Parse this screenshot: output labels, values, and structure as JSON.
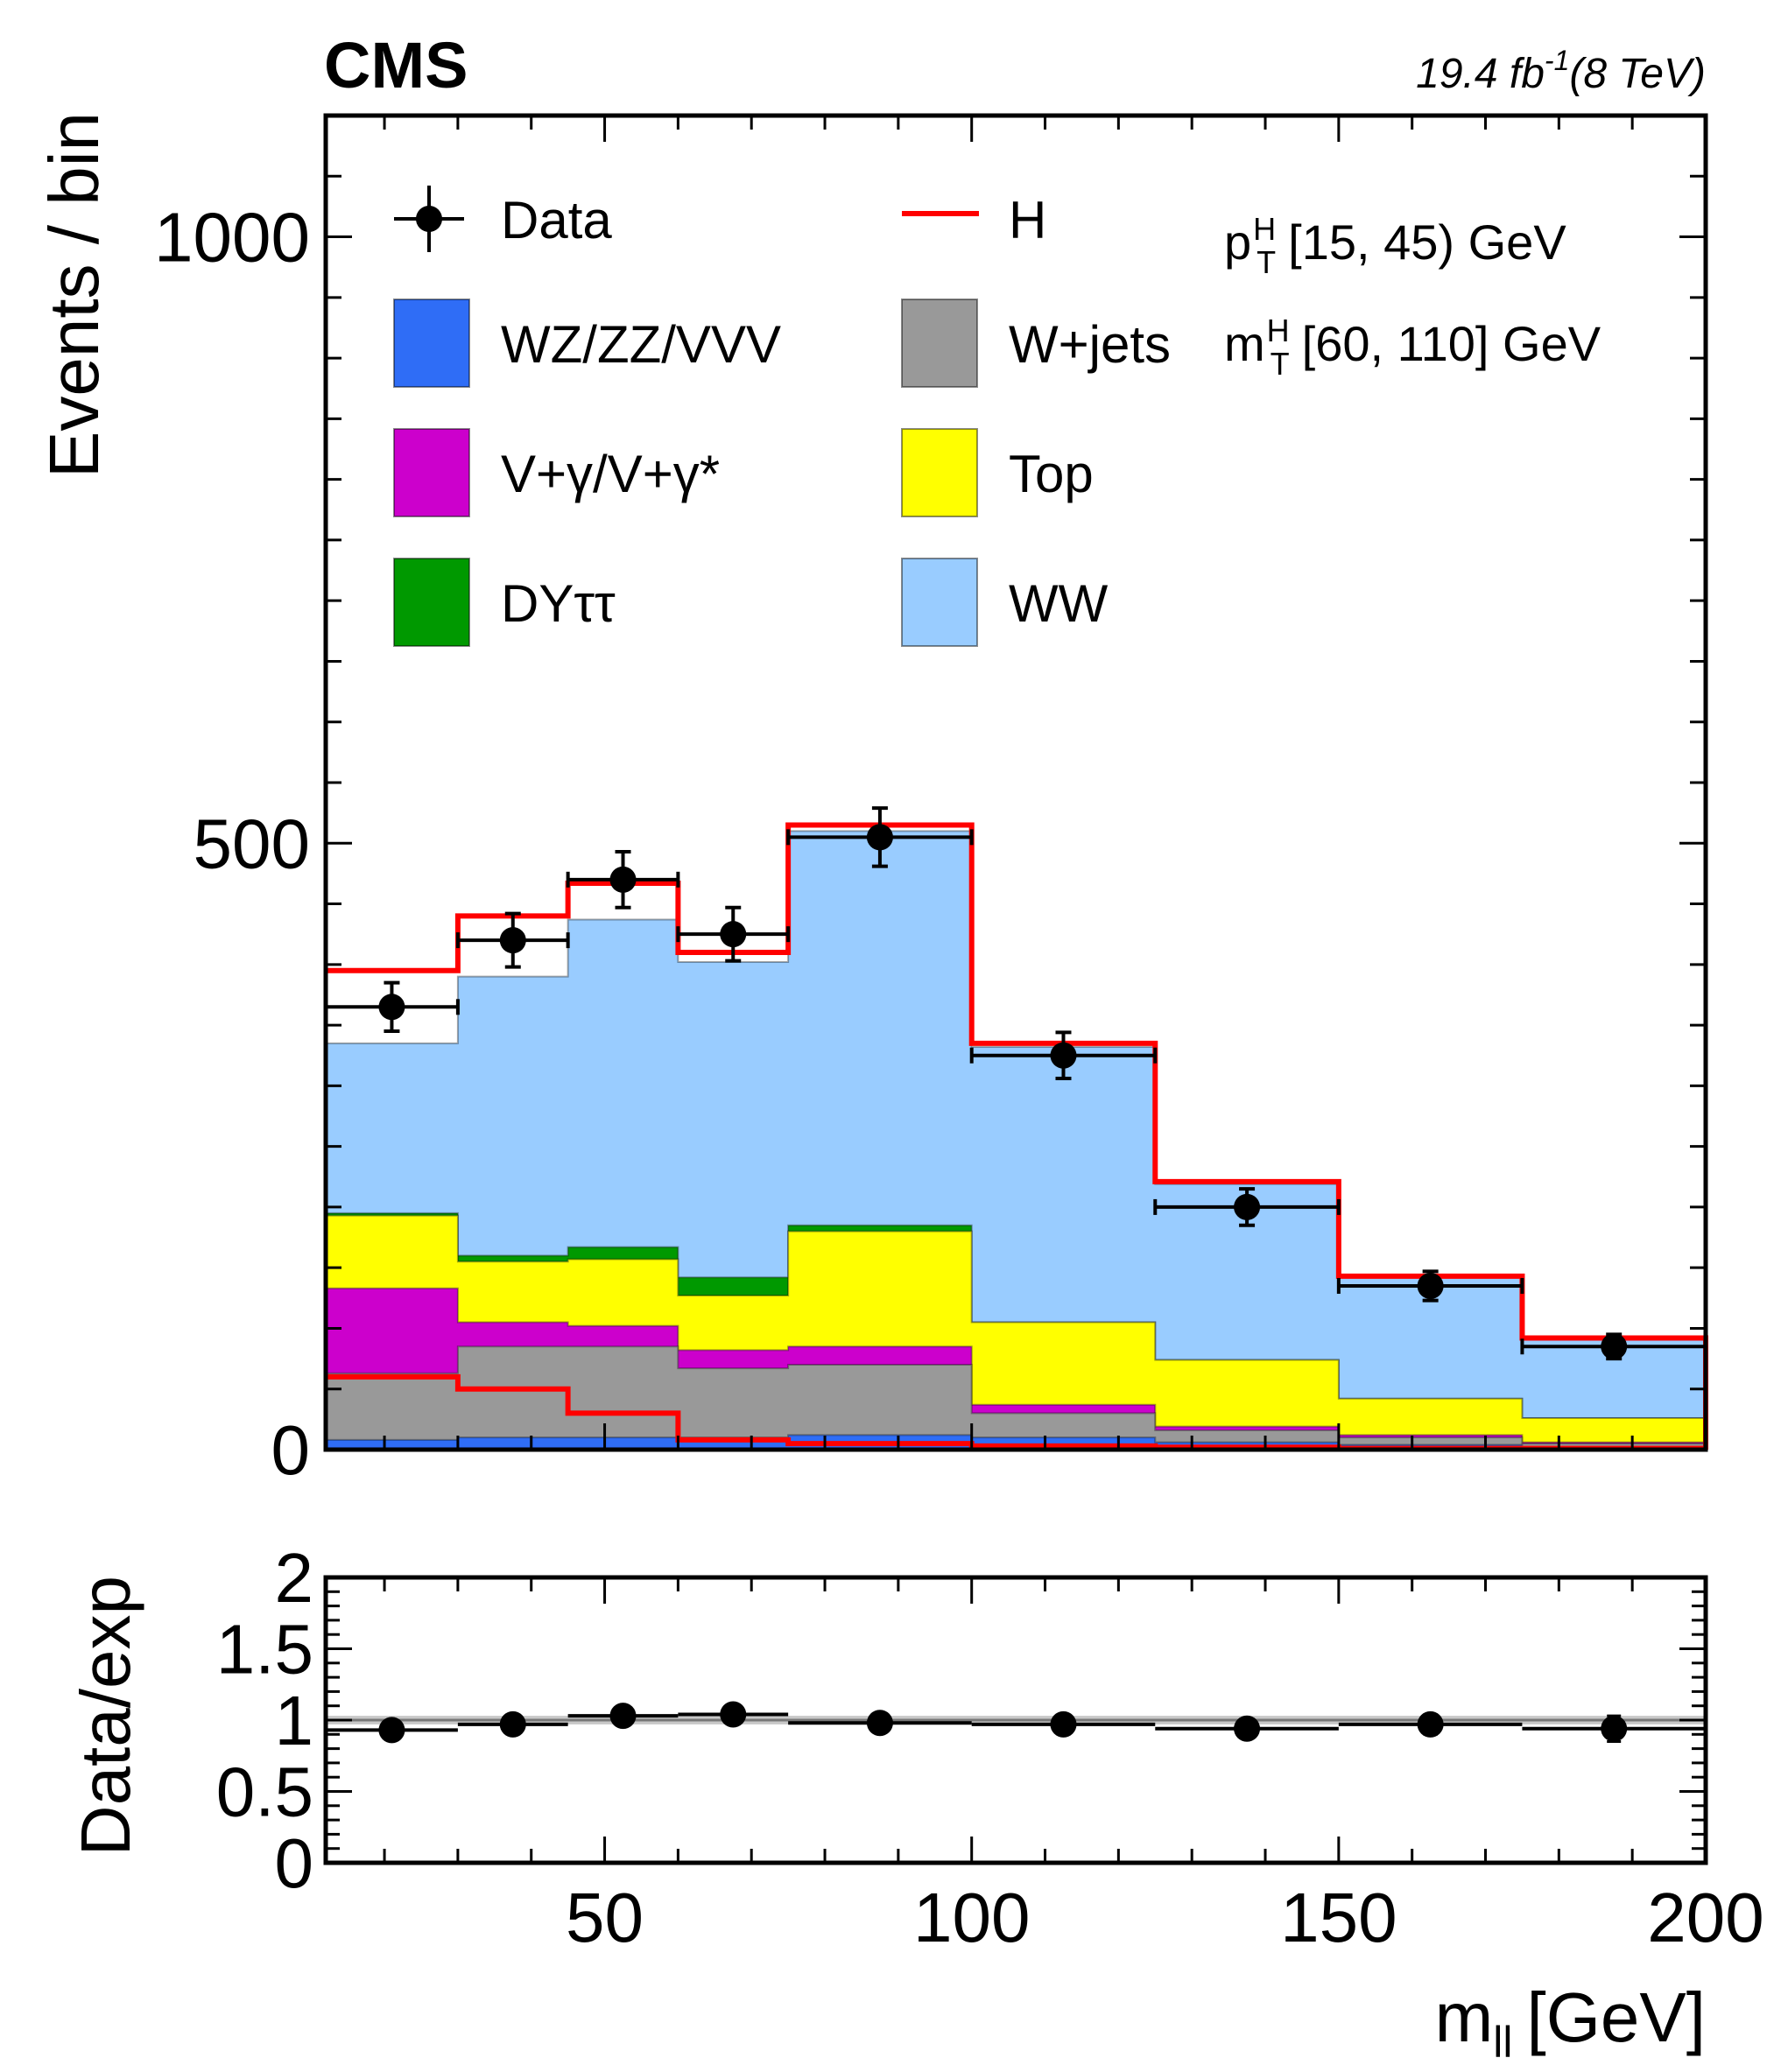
{
  "chart_data": [
    {
      "type": "bar",
      "stacked": true,
      "experiment": "CMS",
      "luminosity": "19.4 fb-1(8 TeV)",
      "ylabel": "Events / bin",
      "ylim": [
        0,
        1100
      ],
      "xlim": [
        12,
        200
      ],
      "yticks": [
        0,
        500,
        1000
      ],
      "bin_edges": [
        12,
        30,
        45,
        60,
        75,
        100,
        125,
        150,
        175,
        200
      ],
      "annotations": {
        "pt_line": "p^H_T [15, 45) GeV",
        "mt_line": "m^H_T [60, 110] GeV"
      },
      "legend": {
        "placement": "top-left",
        "entries": [
          {
            "label": "Data",
            "style": "marker"
          },
          {
            "label": "H",
            "style": "line"
          },
          {
            "label": "WZ/ZZ/VVV",
            "style": "fill"
          },
          {
            "label": "W+jets",
            "style": "fill"
          },
          {
            "label": "V+γ/V+γ*",
            "style": "fill"
          },
          {
            "label": "Top",
            "style": "fill"
          },
          {
            "label": "DYττ",
            "style": "fill"
          },
          {
            "label": "WW",
            "style": "fill"
          }
        ]
      },
      "series": [
        {
          "name": "WZ/ZZ/VVV",
          "color": "#2f6df6",
          "values": [
            8,
            10,
            10,
            10,
            12,
            10,
            6,
            4,
            2
          ]
        },
        {
          "name": "W+jets",
          "color": "#999999",
          "values": [
            55,
            75,
            75,
            57,
            58,
            20,
            10,
            6,
            3
          ]
        },
        {
          "name": "V+γ/V+γ*",
          "color": "#cc00cc",
          "values": [
            70,
            20,
            17,
            15,
            15,
            7,
            3,
            2,
            1
          ]
        },
        {
          "name": "Top",
          "color": "#ffff00",
          "values": [
            60,
            50,
            55,
            45,
            95,
            68,
            55,
            30,
            20
          ]
        },
        {
          "name": "DYττ",
          "color": "#009900",
          "values": [
            2,
            5,
            10,
            15,
            5,
            0,
            0,
            0,
            0
          ]
        },
        {
          "name": "WW",
          "color": "#99ccff",
          "values": [
            140,
            230,
            270,
            260,
            325,
            227,
            145,
            100,
            65
          ]
        }
      ],
      "signal": {
        "name": "H",
        "color": "#ff0000",
        "values": [
          60,
          50,
          30,
          8,
          5,
          3,
          2,
          1,
          1
        ]
      },
      "data": {
        "x": [
          21,
          37.5,
          52.5,
          67.5,
          87.5,
          112.5,
          137.5,
          162.5,
          187.5
        ],
        "y": [
          365,
          420,
          470,
          425,
          505,
          325,
          200,
          135,
          85
        ],
        "err": [
          20,
          22,
          23,
          22,
          24,
          19,
          15,
          12,
          10
        ]
      }
    },
    {
      "type": "scatter",
      "ylabel": "Data/exp",
      "xlabel": "m_ll [GeV]",
      "ylim": [
        0,
        2
      ],
      "xlim": [
        12,
        200
      ],
      "yticks": [
        0,
        0.5,
        1,
        1.5,
        2
      ],
      "yticklabels": [
        "0",
        "0.5",
        "1",
        "1.5",
        "2"
      ],
      "xticks": [
        50,
        100,
        150,
        200
      ],
      "band": [
        0.97,
        1.03
      ],
      "points": {
        "x": [
          21,
          37.5,
          52.5,
          67.5,
          87.5,
          112.5,
          137.5,
          162.5,
          187.5
        ],
        "y": [
          0.93,
          0.97,
          1.03,
          1.04,
          0.98,
          0.97,
          0.94,
          0.97,
          0.94
        ],
        "err": [
          0.05,
          0.05,
          0.05,
          0.05,
          0.05,
          0.05,
          0.06,
          0.07,
          0.09
        ]
      }
    }
  ]
}
